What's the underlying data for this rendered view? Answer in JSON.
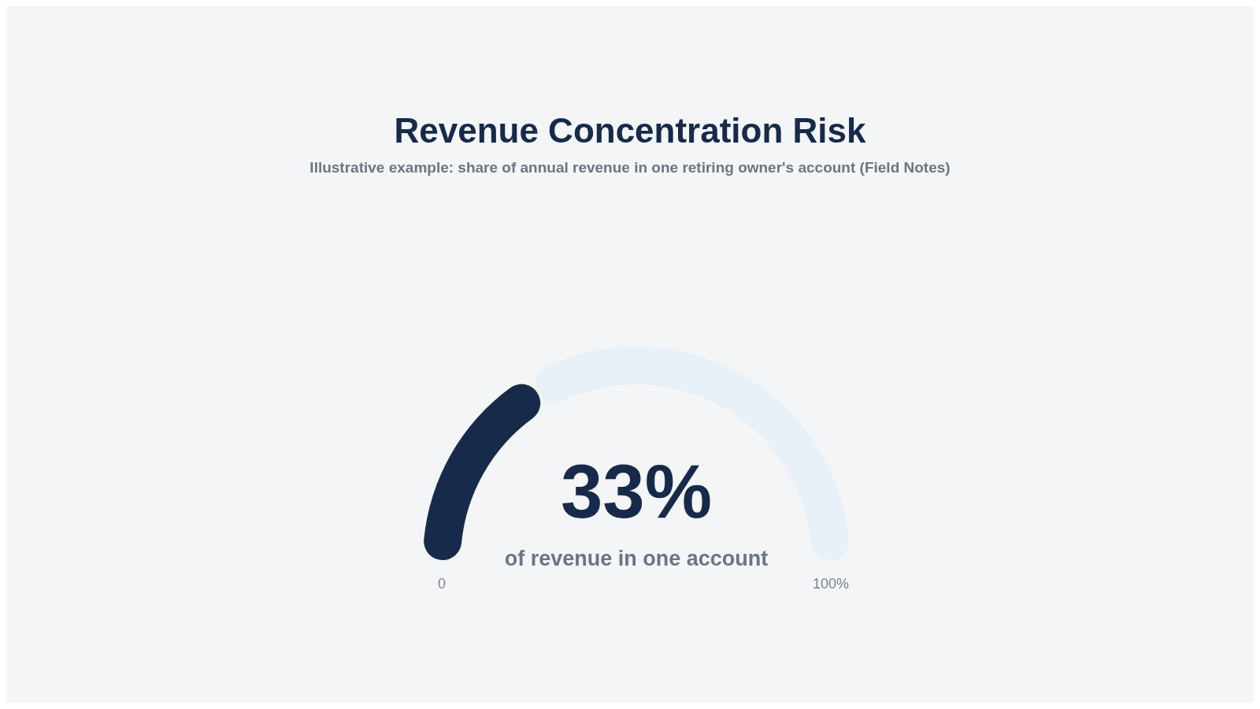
{
  "chart_data": {
    "type": "donut",
    "title": "Revenue Concentration Risk",
    "subtitle": "Illustrative example: share of annual revenue in one retiring owner's account (Field Notes)",
    "categories": [
      null,
      null
    ],
    "values": [
      33,
      67
    ],
    "colors": [
      "#172a4a",
      "#e8f0f8"
    ],
    "annotations": [
      "33%",
      "of revenue in one account",
      "0",
      "100%"
    ]
  }
}
